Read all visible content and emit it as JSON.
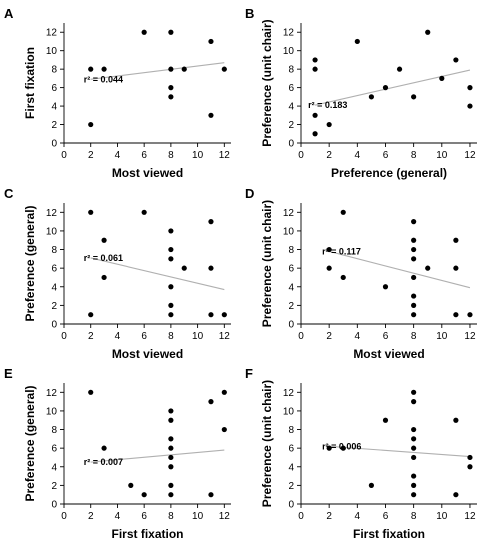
{
  "chart_data": [
    {
      "type": "scatter",
      "panel": "A",
      "xlabel": "Most viewed",
      "ylabel": "First fixation",
      "xlim": [
        0,
        12.5
      ],
      "ylim": [
        0,
        13
      ],
      "xticks": [
        0,
        2,
        4,
        6,
        8,
        10,
        12
      ],
      "yticks": [
        0,
        2,
        4,
        6,
        8,
        10,
        12
      ],
      "r2_label": "r² = 0.044",
      "points": [
        [
          2,
          8
        ],
        [
          2,
          2
        ],
        [
          3,
          8
        ],
        [
          6,
          12
        ],
        [
          8,
          12
        ],
        [
          8,
          8
        ],
        [
          8,
          6
        ],
        [
          8,
          5
        ],
        [
          9,
          8
        ],
        [
          11,
          11
        ],
        [
          11,
          3
        ],
        [
          12,
          8
        ]
      ],
      "fit_line": [
        [
          2,
          6.9
        ],
        [
          12,
          8.7
        ]
      ]
    },
    {
      "type": "scatter",
      "panel": "B",
      "xlabel": "Preference (general)",
      "ylabel": "Preference (unit chair)",
      "xlim": [
        0,
        12.5
      ],
      "ylim": [
        0,
        13
      ],
      "xticks": [
        0,
        2,
        4,
        6,
        8,
        10,
        12
      ],
      "yticks": [
        0,
        2,
        4,
        6,
        8,
        10,
        12
      ],
      "r2_label": "r² = 0.183",
      "points": [
        [
          1,
          9
        ],
        [
          1,
          8
        ],
        [
          1,
          3
        ],
        [
          1,
          1
        ],
        [
          2,
          2
        ],
        [
          4,
          11
        ],
        [
          5,
          5
        ],
        [
          6,
          6
        ],
        [
          7,
          8
        ],
        [
          8,
          5
        ],
        [
          9,
          12
        ],
        [
          10,
          7
        ],
        [
          11,
          9
        ],
        [
          12,
          6
        ],
        [
          12,
          4
        ]
      ],
      "fit_line": [
        [
          1,
          4.1
        ],
        [
          12,
          7.9
        ]
      ]
    },
    {
      "type": "scatter",
      "panel": "C",
      "xlabel": "Most viewed",
      "ylabel": "Preference (general)",
      "xlim": [
        0,
        12.5
      ],
      "ylim": [
        0,
        13
      ],
      "xticks": [
        0,
        2,
        4,
        6,
        8,
        10,
        12
      ],
      "yticks": [
        0,
        2,
        4,
        6,
        8,
        10,
        12
      ],
      "r2_label": "r² = 0.061",
      "points": [
        [
          2,
          12
        ],
        [
          2,
          1
        ],
        [
          3,
          9
        ],
        [
          3,
          5
        ],
        [
          6,
          12
        ],
        [
          8,
          10
        ],
        [
          8,
          8
        ],
        [
          8,
          7
        ],
        [
          8,
          4
        ],
        [
          8,
          2
        ],
        [
          8,
          1
        ],
        [
          9,
          6
        ],
        [
          11,
          11
        ],
        [
          11,
          6
        ],
        [
          11,
          1
        ],
        [
          12,
          1
        ]
      ],
      "fit_line": [
        [
          2,
          7.1
        ],
        [
          12,
          3.7
        ]
      ]
    },
    {
      "type": "scatter",
      "panel": "D",
      "xlabel": "Most viewed",
      "ylabel": "Preference (unit chair)",
      "xlim": [
        0,
        12.5
      ],
      "ylim": [
        0,
        13
      ],
      "xticks": [
        0,
        2,
        4,
        6,
        8,
        10,
        12
      ],
      "yticks": [
        0,
        2,
        4,
        6,
        8,
        10,
        12
      ],
      "r2_label": "r² = 0.117",
      "points": [
        [
          2,
          8
        ],
        [
          2,
          6
        ],
        [
          3,
          12
        ],
        [
          3,
          5
        ],
        [
          6,
          4
        ],
        [
          8,
          11
        ],
        [
          8,
          9
        ],
        [
          8,
          8
        ],
        [
          8,
          7
        ],
        [
          8,
          5
        ],
        [
          8,
          3
        ],
        [
          8,
          2
        ],
        [
          8,
          1
        ],
        [
          9,
          6
        ],
        [
          11,
          9
        ],
        [
          11,
          6
        ],
        [
          11,
          1
        ],
        [
          12,
          1
        ]
      ],
      "fit_line": [
        [
          2,
          7.8
        ],
        [
          12,
          3.9
        ]
      ]
    },
    {
      "type": "scatter",
      "panel": "E",
      "xlabel": "First fixation",
      "ylabel": "Preference (general)",
      "xlim": [
        0,
        12.5
      ],
      "ylim": [
        0,
        13
      ],
      "xticks": [
        0,
        2,
        4,
        6,
        8,
        10,
        12
      ],
      "yticks": [
        0,
        2,
        4,
        6,
        8,
        10,
        12
      ],
      "r2_label": "r² = 0.007",
      "points": [
        [
          2,
          12
        ],
        [
          3,
          6
        ],
        [
          5,
          2
        ],
        [
          6,
          1
        ],
        [
          8,
          10
        ],
        [
          8,
          9
        ],
        [
          8,
          7
        ],
        [
          8,
          6
        ],
        [
          8,
          5
        ],
        [
          8,
          4
        ],
        [
          8,
          2
        ],
        [
          8,
          1
        ],
        [
          11,
          11
        ],
        [
          11,
          1
        ],
        [
          12,
          12
        ],
        [
          12,
          8
        ]
      ],
      "fit_line": [
        [
          2,
          4.5
        ],
        [
          12,
          5.8
        ]
      ]
    },
    {
      "type": "scatter",
      "panel": "F",
      "xlabel": "First fixation",
      "ylabel": "Preference (unit chair)",
      "xlim": [
        0,
        12.5
      ],
      "ylim": [
        0,
        13
      ],
      "xticks": [
        0,
        2,
        4,
        6,
        8,
        10,
        12
      ],
      "yticks": [
        0,
        2,
        4,
        6,
        8,
        10,
        12
      ],
      "r2_label": "r² = 0.006",
      "points": [
        [
          2,
          6
        ],
        [
          3,
          6
        ],
        [
          5,
          2
        ],
        [
          6,
          9
        ],
        [
          8,
          12
        ],
        [
          8,
          11
        ],
        [
          8,
          8
        ],
        [
          8,
          7
        ],
        [
          8,
          6
        ],
        [
          8,
          5
        ],
        [
          8,
          3
        ],
        [
          8,
          2
        ],
        [
          8,
          1
        ],
        [
          11,
          9
        ],
        [
          11,
          1
        ],
        [
          12,
          5
        ],
        [
          12,
          4
        ]
      ],
      "fit_line": [
        [
          2,
          6.2
        ],
        [
          12,
          5.1
        ]
      ]
    }
  ]
}
